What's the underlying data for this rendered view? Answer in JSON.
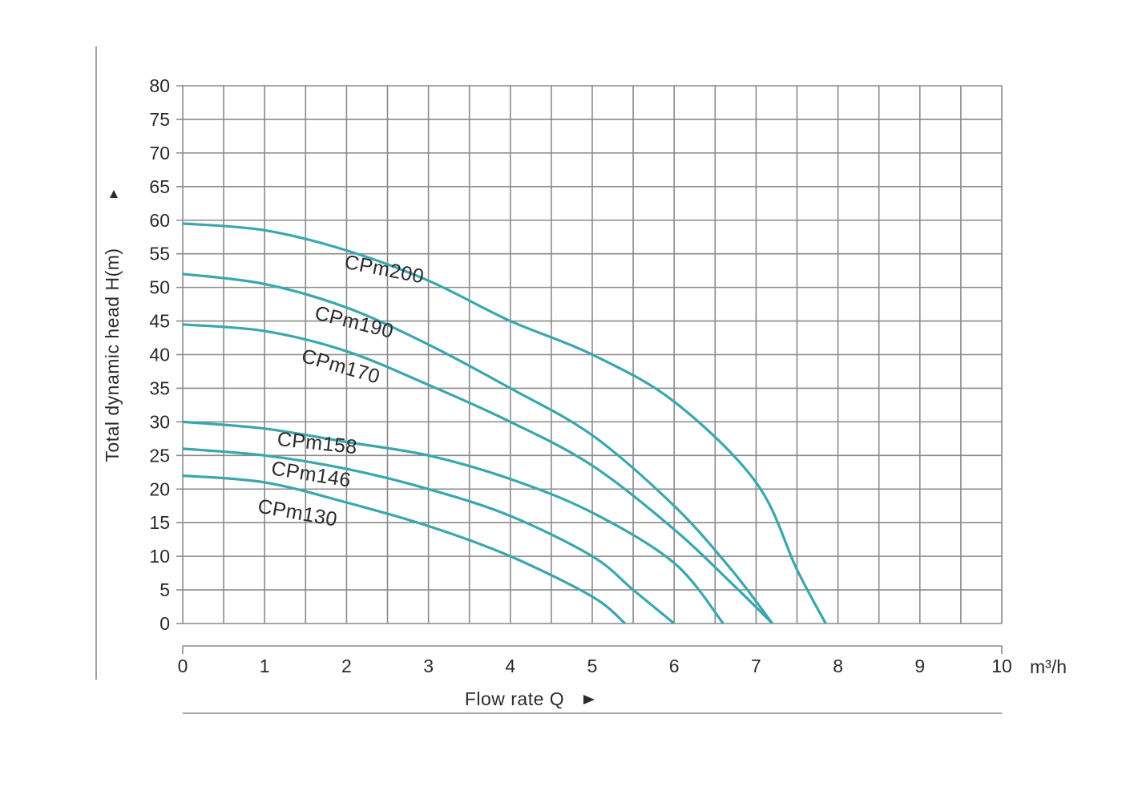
{
  "chart_data": {
    "type": "line",
    "xlabel": "Flow rate Q",
    "ylabel": "Total dynamic head H(m)",
    "x_unit": "m³/h",
    "xlim": [
      0,
      10
    ],
    "ylim": [
      0,
      80
    ],
    "x_ticks": [
      0,
      1,
      2,
      3,
      4,
      5,
      6,
      7,
      8,
      9,
      10
    ],
    "y_ticks": [
      0,
      5,
      10,
      15,
      20,
      25,
      30,
      35,
      40,
      45,
      50,
      55,
      60,
      65,
      70,
      75,
      80
    ],
    "grid": true,
    "line_color": "#3aa7ad",
    "series": [
      {
        "name": "CPm200",
        "points": [
          [
            0,
            59.5
          ],
          [
            1,
            58.5
          ],
          [
            2,
            55.5
          ],
          [
            3,
            51
          ],
          [
            4,
            45
          ],
          [
            5,
            40
          ],
          [
            6,
            33
          ],
          [
            7,
            21
          ],
          [
            7.5,
            8
          ],
          [
            7.85,
            0
          ]
        ]
      },
      {
        "name": "CPm190",
        "points": [
          [
            0,
            52
          ],
          [
            1,
            50.5
          ],
          [
            2,
            47
          ],
          [
            3,
            41.5
          ],
          [
            4,
            35
          ],
          [
            5,
            28
          ],
          [
            6,
            17.5
          ],
          [
            6.7,
            8
          ],
          [
            7.2,
            0
          ]
        ]
      },
      {
        "name": "CPm170",
        "points": [
          [
            0,
            44.5
          ],
          [
            1,
            43.5
          ],
          [
            2,
            40.5
          ],
          [
            3,
            35.5
          ],
          [
            4,
            30
          ],
          [
            5,
            23.5
          ],
          [
            6,
            14
          ],
          [
            6.7,
            6
          ],
          [
            7.2,
            0
          ]
        ]
      },
      {
        "name": "CPm158",
        "points": [
          [
            0,
            30
          ],
          [
            1,
            29
          ],
          [
            2,
            27
          ],
          [
            3,
            25
          ],
          [
            4,
            21.5
          ],
          [
            5,
            16.5
          ],
          [
            6,
            9
          ],
          [
            6.6,
            0
          ]
        ]
      },
      {
        "name": "CPm146",
        "points": [
          [
            0,
            26
          ],
          [
            1,
            25
          ],
          [
            2,
            23
          ],
          [
            3,
            20
          ],
          [
            4,
            16
          ],
          [
            5,
            10
          ],
          [
            5.5,
            5
          ],
          [
            6,
            0
          ]
        ]
      },
      {
        "name": "CPm130",
        "points": [
          [
            0,
            22
          ],
          [
            1,
            21
          ],
          [
            2,
            18
          ],
          [
            3,
            14.5
          ],
          [
            4,
            10
          ],
          [
            5,
            4
          ],
          [
            5.4,
            0
          ]
        ]
      }
    ]
  }
}
